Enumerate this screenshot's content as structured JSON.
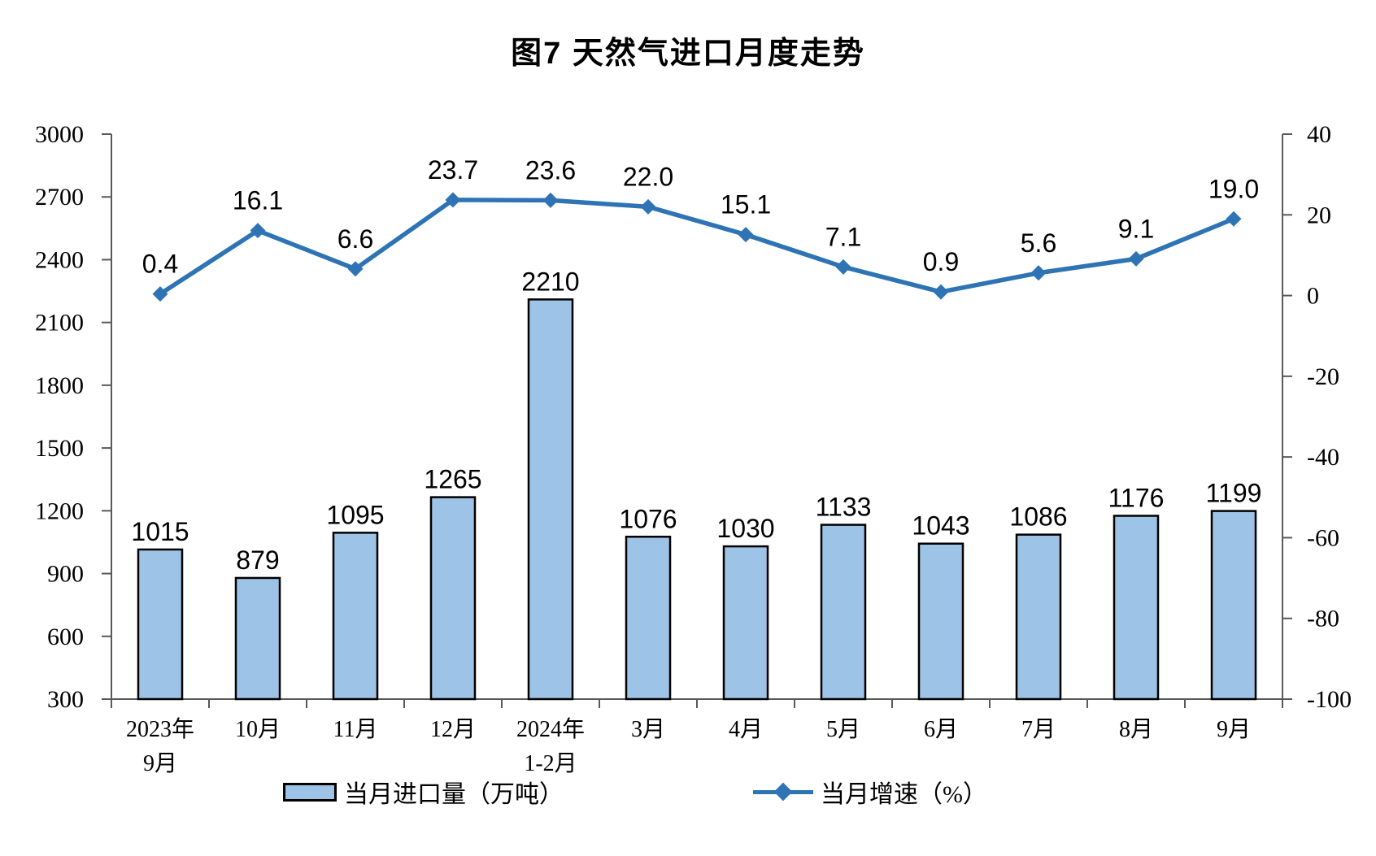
{
  "title": "图7 天然气进口月度走势",
  "colors": {
    "background": "#FFFFFF",
    "bar_fill": "#9DC3E6",
    "bar_border": "#000000",
    "line": "#2E74B5",
    "axis": "#595959",
    "text": "#000000"
  },
  "legend": {
    "bar_label": "当月进口量（万吨）",
    "line_label": "当月增速（%）"
  },
  "chart_data": {
    "type": "combo-bar-line",
    "title": "图7 天然气进口月度走势",
    "grid": false,
    "legend_position": "bottom",
    "categories": [
      "2023年\n9月",
      "10月",
      "11月",
      "12月",
      "2024年\n1-2月",
      "3月",
      "4月",
      "5月",
      "6月",
      "7月",
      "8月",
      "9月"
    ],
    "series": [
      {
        "name": "当月进口量（万吨）",
        "type": "bar",
        "axis": "left",
        "color": "#9DC3E6",
        "border_color": "#000000",
        "values": [
          1015,
          879,
          1095,
          1265,
          2210,
          1076,
          1030,
          1133,
          1043,
          1086,
          1176,
          1199
        ],
        "labels": [
          "1015",
          "879",
          "1095",
          "1265",
          "2210",
          "1076",
          "1030",
          "1133",
          "1043",
          "1086",
          "1176",
          "1199"
        ]
      },
      {
        "name": "当月增速（%）",
        "type": "line",
        "axis": "right",
        "color": "#2E74B5",
        "marker": "diamond",
        "values": [
          0.4,
          16.1,
          6.6,
          23.7,
          23.6,
          22.0,
          15.1,
          7.1,
          0.9,
          5.6,
          9.1,
          19.0
        ],
        "labels": [
          "0.4",
          "16.1",
          "6.6",
          "23.7",
          "23.6",
          "22.0",
          "15.1",
          "7.1",
          "0.9",
          "5.6",
          "9.1",
          "19.0"
        ]
      }
    ],
    "left_axis": {
      "min": 300,
      "max": 3000,
      "step": 300,
      "ticks": [
        "3000",
        "2700",
        "2400",
        "2100",
        "1800",
        "1500",
        "1200",
        "900",
        "600",
        "300"
      ]
    },
    "right_axis": {
      "min": -100,
      "max": 40,
      "step": 20,
      "ticks": [
        "40",
        "20",
        "0",
        "-20",
        "-40",
        "-60",
        "-80",
        "-100"
      ]
    }
  }
}
